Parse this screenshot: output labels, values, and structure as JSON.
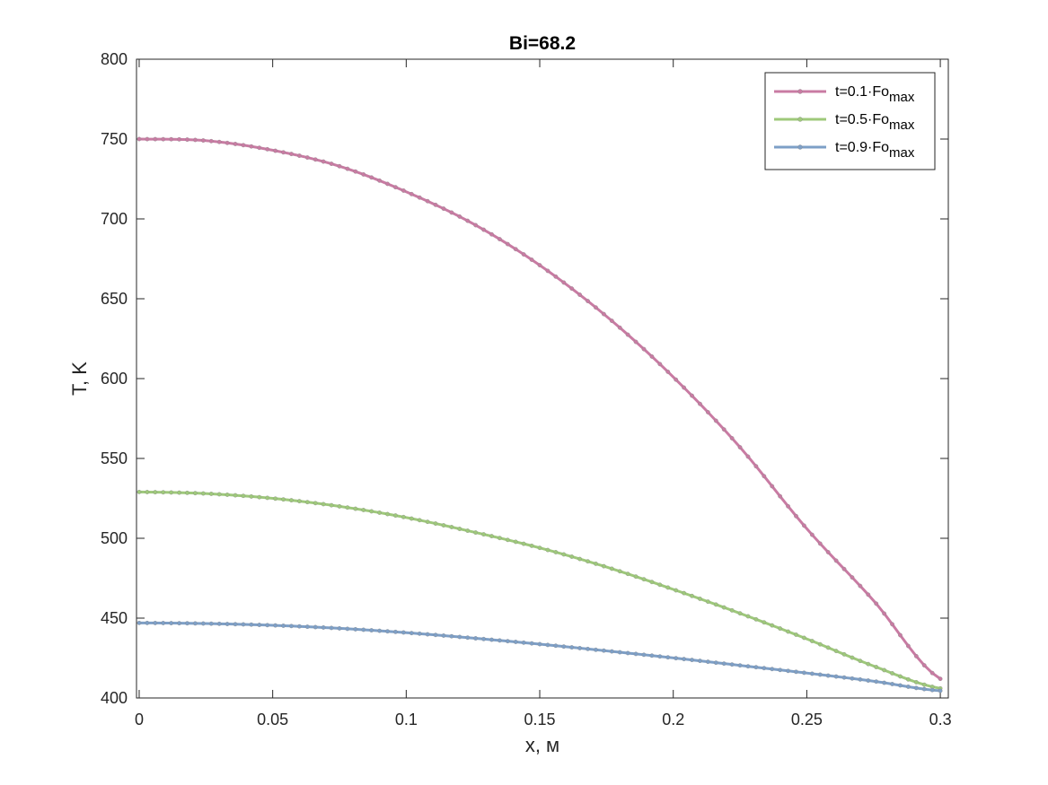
{
  "chart_data": {
    "type": "line",
    "title": "Bi=68.2",
    "xlabel": "x, м",
    "ylabel": "T, K",
    "xlim": [
      -0.001,
      0.303
    ],
    "ylim": [
      400,
      800
    ],
    "xticks": [
      0,
      0.05,
      0.1,
      0.15,
      0.2,
      0.25,
      0.3
    ],
    "xtick_labels": [
      "0",
      "0.05",
      "0.1",
      "0.15",
      "0.2",
      "0.25",
      "0.3"
    ],
    "yticks": [
      400,
      450,
      500,
      550,
      600,
      650,
      700,
      750,
      800
    ],
    "ytick_labels": [
      "400",
      "450",
      "500",
      "550",
      "600",
      "650",
      "700",
      "750",
      "800"
    ],
    "grid": false,
    "legend_position": "top-right",
    "x": [
      0,
      0.025,
      0.05,
      0.075,
      0.1,
      0.125,
      0.15,
      0.175,
      0.2,
      0.225,
      0.25,
      0.275,
      0.3
    ],
    "series": [
      {
        "name": "t=0.1·Fo",
        "name_main": "t=0.1·Fo",
        "name_sub": "max",
        "color": "#c97ba3",
        "values": [
          750,
          749,
          743,
          733,
          717,
          697,
          671,
          639,
          601,
          557,
          506,
          461,
          412
        ]
      },
      {
        "name": "t=0.5·Fo",
        "name_main": "t=0.5·Fo",
        "name_sub": "max",
        "color": "#9ec97a",
        "values": [
          529,
          528,
          525,
          520,
          513,
          504,
          494,
          482,
          468,
          453,
          437,
          420,
          406
        ]
      },
      {
        "name": "t=0.9·Fo",
        "name_main": "t=0.9·Fo",
        "name_sub": "max",
        "color": "#7d9fc7",
        "values": [
          447,
          446.6,
          445.5,
          443.6,
          440.9,
          437.5,
          433.7,
          429.5,
          425.1,
          420.4,
          415.6,
          410.5,
          404.5
        ]
      }
    ]
  }
}
